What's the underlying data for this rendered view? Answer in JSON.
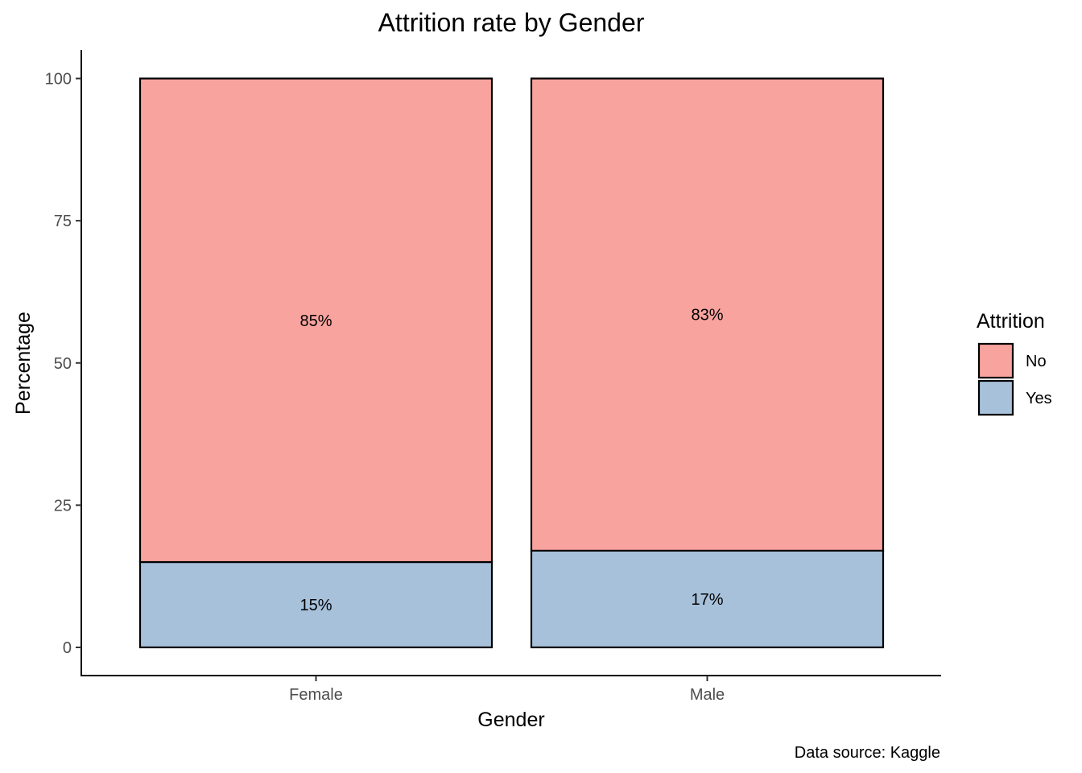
{
  "chart_data": {
    "type": "bar",
    "stacked": true,
    "title": "Attrition rate by Gender",
    "xlabel": "Gender",
    "ylabel": "Percentage",
    "categories": [
      "Female",
      "Male"
    ],
    "series": [
      {
        "name": "No",
        "values": [
          85,
          83
        ],
        "labels": [
          "85%",
          "83%"
        ],
        "color": "#F8A39E"
      },
      {
        "name": "Yes",
        "values": [
          15,
          17
        ],
        "labels": [
          "15%",
          "17%"
        ],
        "color": "#A7C1DB"
      }
    ],
    "ylim": [
      0,
      100
    ],
    "yticks": [
      0,
      25,
      50,
      75,
      100
    ],
    "grid": false,
    "legend": {
      "title": "Attrition",
      "position": "right"
    },
    "caption": "Data source: Kaggle"
  }
}
